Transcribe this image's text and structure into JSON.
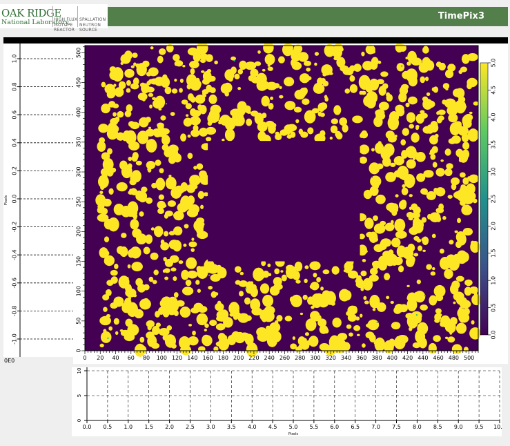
{
  "header": {
    "logo_main": "OAK RIDGE",
    "logo_sub": "National Laboratory",
    "logo_col1": [
      "HIGH FLUX",
      "ISOTOPE",
      "REACTOR"
    ],
    "logo_col2": [
      "SPALLATION",
      "NEUTRON",
      "SOURCE"
    ],
    "title": "TimePix3",
    "colors": {
      "brand_green": "#2e6f34",
      "title_bar": "#527f4a"
    }
  },
  "left_profile": {
    "ylabel": "Pixels",
    "ticks": [
      "1.0",
      "0.8",
      "0.6",
      "0.4",
      "0.2",
      "0.0",
      "-0.2",
      "-0.4",
      "-0.6",
      "-0.8",
      "-1.0"
    ],
    "corner_label": "0E0"
  },
  "chart_data": [
    {
      "type": "heatmap",
      "title": "",
      "xlabel": "",
      "ylabel": "",
      "xlim": [
        0,
        512
      ],
      "ylim": [
        0,
        512
      ],
      "x_ticks": [
        0,
        20,
        40,
        60,
        80,
        100,
        120,
        140,
        160,
        180,
        200,
        220,
        240,
        260,
        280,
        300,
        320,
        340,
        360,
        380,
        400,
        420,
        440,
        460,
        480,
        500
      ],
      "y_ticks": [
        0,
        50,
        100,
        150,
        200,
        250,
        300,
        350,
        400,
        450,
        500
      ],
      "colormap": "viridis",
      "background_color": "#440154",
      "blob_color": "#fde725",
      "empty_region": {
        "x": [
          160,
          358
        ],
        "y": [
          150,
          352
        ]
      },
      "colorbar": {
        "ticks": [
          "0.0",
          "0.5",
          "1.0",
          "1.5",
          "2.0",
          "2.5",
          "3.0",
          "3.5",
          "4.0",
          "4.5",
          "5.0"
        ],
        "range": [
          0,
          5
        ]
      }
    },
    {
      "type": "line",
      "title": "",
      "xlabel": "Pixels",
      "ylabel": "",
      "xlim": [
        0,
        10
      ],
      "ylim": [
        0,
        10
      ],
      "x_ticks": [
        "0.0",
        "0.5",
        "1.0",
        "1.5",
        "2.0",
        "2.5",
        "3.0",
        "3.5",
        "4.0",
        "4.5",
        "5.0",
        "5.5",
        "6.0",
        "6.5",
        "7.0",
        "7.5",
        "8.0",
        "8.5",
        "9.0",
        "9.5",
        "10.0"
      ],
      "y_ticks": [
        "0",
        "5",
        "10"
      ],
      "series": []
    }
  ]
}
